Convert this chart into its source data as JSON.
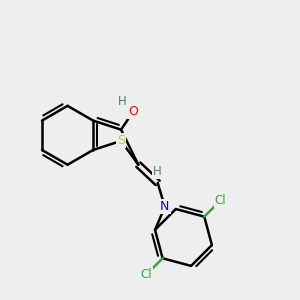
{
  "background_color": "#eeeeee",
  "bond_color": "#000000",
  "atom_colors": {
    "S": "#cccc00",
    "O": "#ff0000",
    "N": "#0000ff",
    "Cl": "#33aa33",
    "H_gray": "#557777"
  },
  "figsize": [
    3.0,
    3.0
  ],
  "dpi": 100,
  "xlim": [
    0,
    10
  ],
  "ylim": [
    0,
    10
  ]
}
